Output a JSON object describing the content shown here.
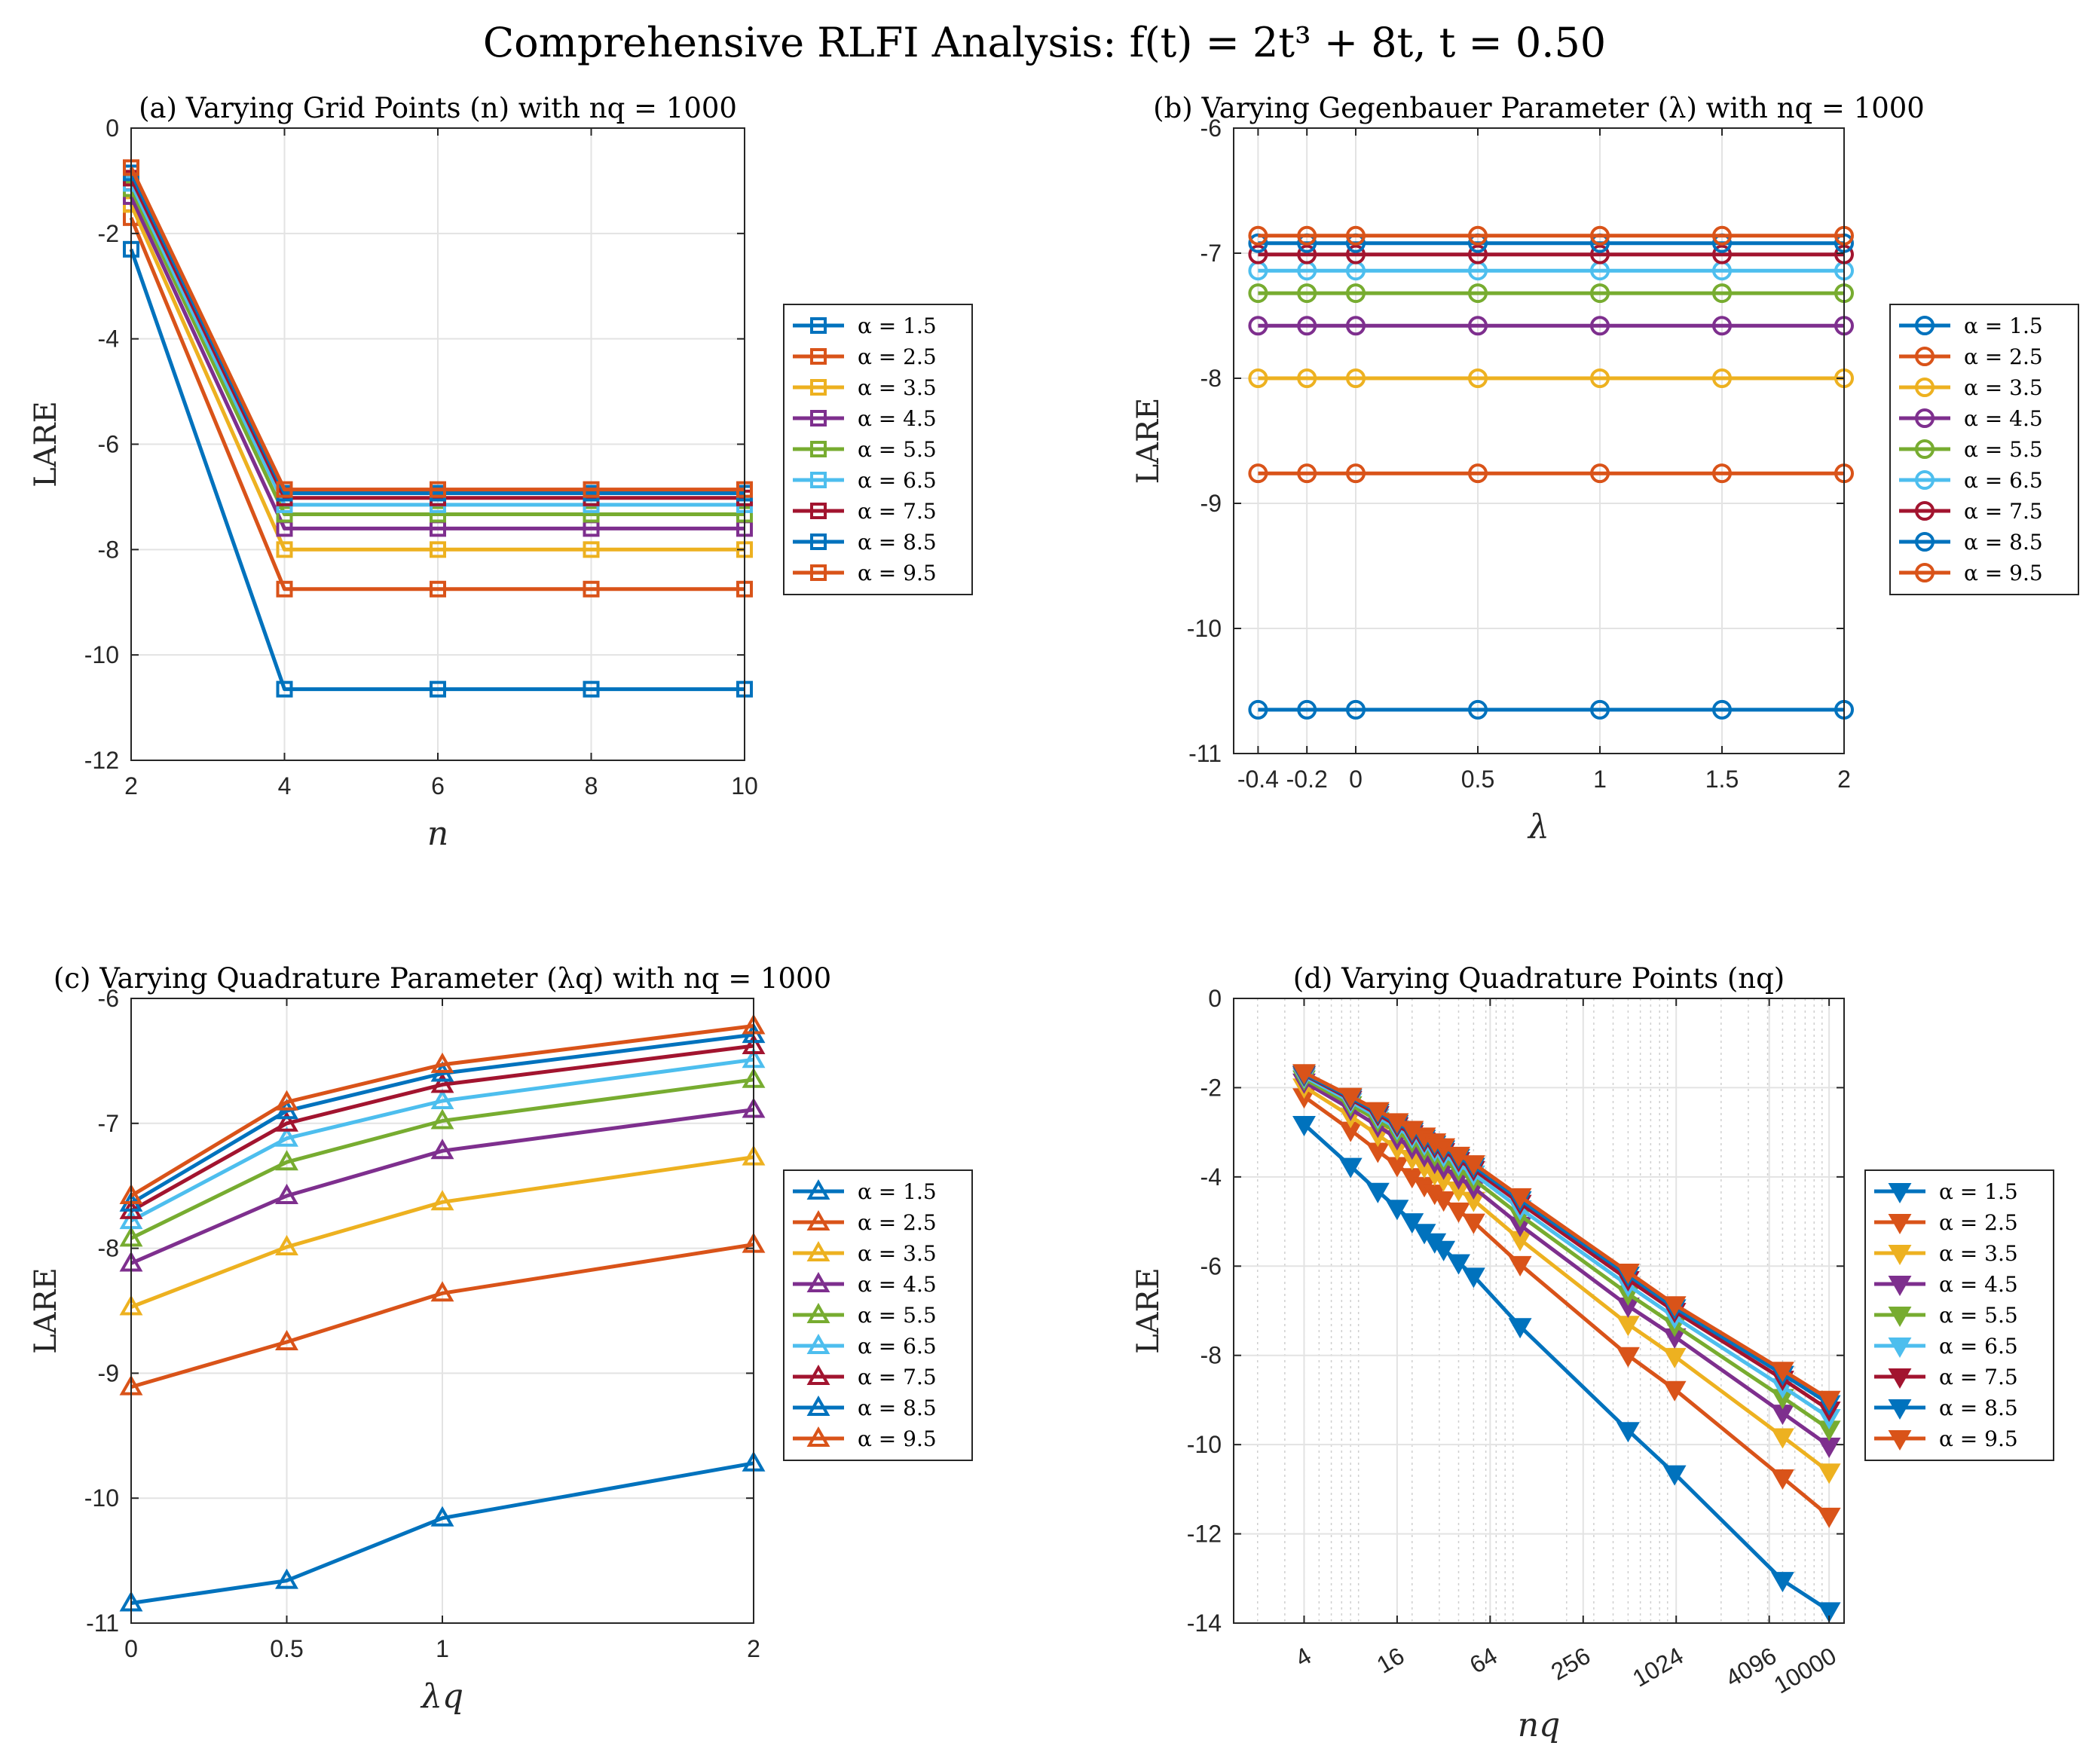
{
  "title": "Comprehensive RLFI Analysis:  f(t) = 2t³ + 8t, t = 0.50",
  "colors": [
    "#0072BD",
    "#D95319",
    "#EDB120",
    "#7E2F8E",
    "#77AC30",
    "#4DBEEE",
    "#A2142F",
    "#0072BD",
    "#D95319"
  ],
  "legend_labels": [
    "α = 1.5",
    "α = 2.5",
    "α = 3.5",
    "α = 4.5",
    "α = 5.5",
    "α = 6.5",
    "α = 7.5",
    "α = 8.5",
    "α = 9.5"
  ],
  "chart_data": [
    {
      "type": "line",
      "panel": "a",
      "title": "(a) Varying Grid Points (n) with n_q = 1000",
      "xlabel": "n",
      "ylabel": "LARE",
      "marker": "square",
      "xlim": [
        2,
        10
      ],
      "ylim": [
        -12,
        0
      ],
      "xticks": [
        2,
        4,
        6,
        8,
        10
      ],
      "xtick_labels": [
        "2",
        "4",
        "6",
        "8",
        "10"
      ],
      "yticks": [
        -12,
        -10,
        -8,
        -6,
        -4,
        -2,
        0
      ],
      "ytick_labels": [
        "-12",
        "-10",
        "-8",
        "-6",
        "-4",
        "-2",
        "0"
      ],
      "grid": true,
      "legend_position": "outside-right",
      "x": [
        2,
        4,
        6,
        8,
        10
      ],
      "series": [
        {
          "name": "α = 1.5",
          "values": [
            -2.3,
            -10.65,
            -10.65,
            -10.65,
            -10.65
          ]
        },
        {
          "name": "α = 2.5",
          "values": [
            -1.7,
            -8.75,
            -8.75,
            -8.75,
            -8.75
          ]
        },
        {
          "name": "α = 3.5",
          "values": [
            -1.45,
            -8.0,
            -8.0,
            -8.0,
            -8.0
          ]
        },
        {
          "name": "α = 4.5",
          "values": [
            -1.3,
            -7.6,
            -7.6,
            -7.6,
            -7.6
          ]
        },
        {
          "name": "α = 5.5",
          "values": [
            -1.15,
            -7.33,
            -7.33,
            -7.33,
            -7.33
          ]
        },
        {
          "name": "α = 6.5",
          "values": [
            -1.05,
            -7.15,
            -7.15,
            -7.15,
            -7.15
          ]
        },
        {
          "name": "α = 7.5",
          "values": [
            -0.95,
            -7.02,
            -7.02,
            -7.02,
            -7.02
          ]
        },
        {
          "name": "α = 8.5",
          "values": [
            -0.85,
            -6.93,
            -6.93,
            -6.93,
            -6.93
          ]
        },
        {
          "name": "α = 9.5",
          "values": [
            -0.75,
            -6.86,
            -6.86,
            -6.86,
            -6.86
          ]
        }
      ]
    },
    {
      "type": "line",
      "panel": "b",
      "title": "(b) Varying Gegenbauer Parameter (λ) with n_q = 1000",
      "xlabel": "λ",
      "ylabel": "LARE",
      "marker": "circle",
      "xlim": [
        -0.5,
        2
      ],
      "ylim": [
        -11,
        -6
      ],
      "xticks": [
        -0.4,
        -0.2,
        0,
        0.5,
        1,
        1.5,
        2
      ],
      "xtick_labels": [
        "-0.4",
        "-0.2",
        "0",
        "0.5",
        "1",
        "1.5",
        "2"
      ],
      "yticks": [
        -11,
        -10,
        -9,
        -8,
        -7,
        -6
      ],
      "ytick_labels": [
        "-11",
        "-10",
        "-9",
        "-8",
        "-7",
        "-6"
      ],
      "grid": true,
      "legend_position": "outside-right",
      "x": [
        -0.4,
        -0.2,
        0,
        0.5,
        1,
        1.5,
        2
      ],
      "series": [
        {
          "name": "α = 1.5",
          "values": [
            -10.65,
            -10.65,
            -10.65,
            -10.65,
            -10.65,
            -10.65,
            -10.65
          ]
        },
        {
          "name": "α = 2.5",
          "values": [
            -8.76,
            -8.76,
            -8.76,
            -8.76,
            -8.76,
            -8.76,
            -8.76
          ]
        },
        {
          "name": "α = 3.5",
          "values": [
            -8.0,
            -8.0,
            -8.0,
            -8.0,
            -8.0,
            -8.0,
            -8.0
          ]
        },
        {
          "name": "α = 4.5",
          "values": [
            -7.58,
            -7.58,
            -7.58,
            -7.58,
            -7.58,
            -7.58,
            -7.58
          ]
        },
        {
          "name": "α = 5.5",
          "values": [
            -7.32,
            -7.32,
            -7.32,
            -7.32,
            -7.32,
            -7.32,
            -7.32
          ]
        },
        {
          "name": "α = 6.5",
          "values": [
            -7.14,
            -7.14,
            -7.14,
            -7.14,
            -7.14,
            -7.14,
            -7.14
          ]
        },
        {
          "name": "α = 7.5",
          "values": [
            -7.01,
            -7.01,
            -7.01,
            -7.01,
            -7.01,
            -7.01,
            -7.01
          ]
        },
        {
          "name": "α = 8.5",
          "values": [
            -6.92,
            -6.92,
            -6.92,
            -6.92,
            -6.92,
            -6.92,
            -6.92
          ]
        },
        {
          "name": "α = 9.5",
          "values": [
            -6.86,
            -6.86,
            -6.86,
            -6.86,
            -6.86,
            -6.86,
            -6.86
          ]
        }
      ]
    },
    {
      "type": "line",
      "panel": "c",
      "title": "(c) Varying Quadrature Parameter (λ_q) with n_q = 1000",
      "xlabel": "λ_q",
      "ylabel": "LARE",
      "marker": "triangle-up",
      "xlim": [
        0,
        2
      ],
      "ylim": [
        -11,
        -6
      ],
      "xticks": [
        0,
        0.5,
        1,
        2
      ],
      "xtick_labels": [
        "0",
        "0.5",
        "1",
        "2"
      ],
      "yticks": [
        -11,
        -10,
        -9,
        -8,
        -7,
        -6
      ],
      "ytick_labels": [
        "-11",
        "-10",
        "-9",
        "-8",
        "-7",
        "-6"
      ],
      "grid": true,
      "legend_position": "outside-right",
      "x": [
        0,
        0.5,
        1,
        2
      ],
      "series": [
        {
          "name": "α = 1.5",
          "values": [
            -10.84,
            -10.66,
            -10.16,
            -9.72
          ]
        },
        {
          "name": "α = 2.5",
          "values": [
            -9.11,
            -8.75,
            -8.36,
            -7.97
          ]
        },
        {
          "name": "α = 3.5",
          "values": [
            -8.47,
            -7.99,
            -7.63,
            -7.27
          ]
        },
        {
          "name": "α = 4.5",
          "values": [
            -8.12,
            -7.58,
            -7.22,
            -6.89
          ]
        },
        {
          "name": "α = 5.5",
          "values": [
            -7.92,
            -7.31,
            -6.98,
            -6.65
          ]
        },
        {
          "name": "α = 6.5",
          "values": [
            -7.78,
            -7.12,
            -6.82,
            -6.49
          ]
        },
        {
          "name": "α = 7.5",
          "values": [
            -7.7,
            -7.0,
            -6.69,
            -6.38
          ]
        },
        {
          "name": "α = 8.5",
          "values": [
            -7.64,
            -6.9,
            -6.6,
            -6.29
          ]
        },
        {
          "name": "α = 9.5",
          "values": [
            -7.58,
            -6.83,
            -6.53,
            -6.22
          ]
        }
      ]
    },
    {
      "type": "line",
      "panel": "d",
      "title": "(d) Varying Quadrature Points (n_q)",
      "xlabel": "n_q",
      "ylabel": "LARE",
      "marker": "triangle-down",
      "xscale": "log",
      "xlim": [
        1.4,
        12500
      ],
      "ylim": [
        -14,
        0
      ],
      "xticks": [
        4,
        16,
        64,
        256,
        1024,
        4096,
        10000
      ],
      "xtick_labels": [
        "4",
        "16",
        "64",
        "256",
        "1024",
        "4096",
        "10000"
      ],
      "yticks": [
        -14,
        -12,
        -10,
        -8,
        -6,
        -4,
        -2,
        0
      ],
      "ytick_labels": [
        "-14",
        "-12",
        "-10",
        "-8",
        "-6",
        "-4",
        "-2",
        "0"
      ],
      "grid": true,
      "legend_position": "outside-right",
      "x": [
        4,
        8,
        12,
        16,
        20,
        24,
        28,
        32,
        40,
        50,
        100,
        500,
        1000,
        5000,
        10000
      ],
      "series": [
        {
          "name": "α = 1.5",
          "values": [
            -2.82,
            -3.76,
            -4.32,
            -4.7,
            -5.0,
            -5.24,
            -5.45,
            -5.62,
            -5.92,
            -6.22,
            -7.35,
            -9.68,
            -10.65,
            -13.04,
            -13.72
          ]
        },
        {
          "name": "α = 2.5",
          "values": [
            -2.2,
            -2.95,
            -3.42,
            -3.74,
            -3.99,
            -4.19,
            -4.36,
            -4.51,
            -4.76,
            -5.01,
            -5.96,
            -8.0,
            -8.76,
            -10.74,
            -11.6
          ]
        },
        {
          "name": "α = 3.5",
          "values": [
            -1.98,
            -2.64,
            -3.06,
            -3.36,
            -3.58,
            -3.77,
            -3.93,
            -4.06,
            -4.29,
            -4.52,
            -5.4,
            -7.3,
            -8.02,
            -9.82,
            -10.61
          ]
        },
        {
          "name": "α = 4.5",
          "values": [
            -1.87,
            -2.48,
            -2.86,
            -3.14,
            -3.35,
            -3.52,
            -3.67,
            -3.8,
            -4.02,
            -4.24,
            -5.08,
            -6.89,
            -7.58,
            -9.29,
            -10.03
          ]
        },
        {
          "name": "α = 5.5",
          "values": [
            -1.8,
            -2.38,
            -2.74,
            -3.0,
            -3.2,
            -3.37,
            -3.51,
            -3.63,
            -3.84,
            -4.06,
            -4.86,
            -6.62,
            -7.32,
            -8.94,
            -9.65
          ]
        },
        {
          "name": "α = 6.5",
          "values": [
            -1.75,
            -2.31,
            -2.66,
            -2.91,
            -3.1,
            -3.26,
            -3.4,
            -3.52,
            -3.72,
            -3.93,
            -4.71,
            -6.43,
            -7.14,
            -8.7,
            -9.39
          ]
        },
        {
          "name": "α = 7.5",
          "values": [
            -1.71,
            -2.26,
            -2.6,
            -2.85,
            -3.03,
            -3.19,
            -3.32,
            -3.43,
            -3.63,
            -3.83,
            -4.59,
            -6.3,
            -7.01,
            -8.53,
            -9.22
          ]
        },
        {
          "name": "α = 8.5",
          "values": [
            -1.69,
            -2.22,
            -2.55,
            -2.8,
            -2.97,
            -3.13,
            -3.26,
            -3.37,
            -3.56,
            -3.76,
            -4.51,
            -6.2,
            -6.93,
            -8.42,
            -9.08
          ]
        },
        {
          "name": "α = 9.5",
          "values": [
            -1.66,
            -2.19,
            -2.51,
            -2.76,
            -2.93,
            -3.08,
            -3.21,
            -3.32,
            -3.51,
            -3.7,
            -4.44,
            -6.13,
            -6.86,
            -8.33,
            -8.98
          ]
        }
      ]
    }
  ]
}
